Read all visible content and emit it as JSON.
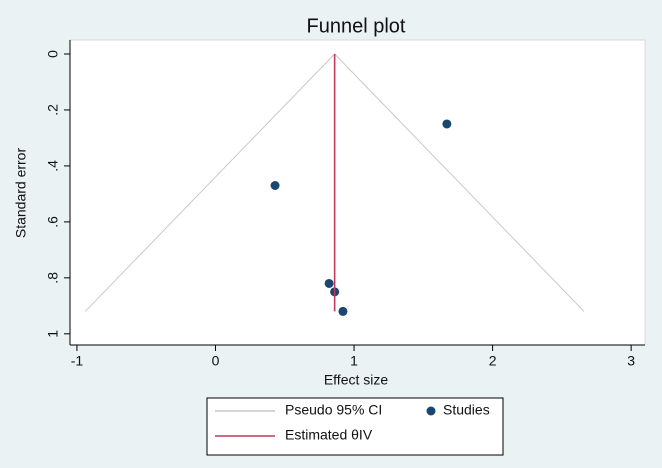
{
  "chart_data": {
    "type": "scatter",
    "title": "Funnel plot",
    "x_label": "Effect size",
    "y_label": "Standard error",
    "xlim": [
      -1.05,
      3.1
    ],
    "xticks": [
      -1,
      0,
      1,
      2,
      3
    ],
    "ylim": [
      -0.05,
      1.04
    ],
    "yticks": [
      0,
      {
        "value": 0.2,
        "label": ".2"
      },
      {
        "value": 0.4,
        "label": ".4"
      },
      {
        "value": 0.6,
        "label": ".6"
      },
      {
        "value": 0.8,
        "label": ".8"
      },
      1
    ],
    "y_reversed": true,
    "series": [
      {
        "name": "Pseudo 95% CI",
        "type": "line",
        "color": "#c8c8c8",
        "x": [
          -0.94,
          0.86,
          2.66
        ],
        "values": [
          0.92,
          0,
          0.92
        ]
      },
      {
        "name": "Studies",
        "type": "scatter",
        "color": "#1a476f",
        "x": [
          1.67,
          0.43,
          0.82,
          0.86,
          0.92
        ],
        "values": [
          0.25,
          0.47,
          0.82,
          0.85,
          0.92
        ]
      },
      {
        "name": "Estimated θIV",
        "type": "line",
        "color": "#c0395a",
        "x": [
          0.86,
          0.86
        ],
        "values": [
          0,
          0.92
        ]
      }
    ]
  }
}
